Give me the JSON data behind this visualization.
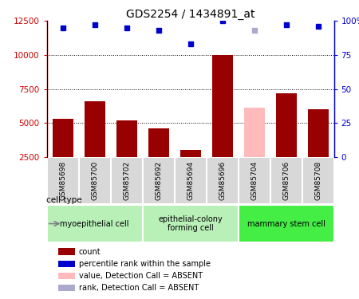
{
  "title": "GDS2254 / 1434891_at",
  "samples": [
    "GSM85698",
    "GSM85700",
    "GSM85702",
    "GSM85692",
    "GSM85694",
    "GSM85696",
    "GSM85704",
    "GSM85706",
    "GSM85708"
  ],
  "counts": [
    5300,
    6600,
    5200,
    4600,
    3000,
    10000,
    6100,
    7200,
    6000
  ],
  "ranks": [
    95,
    97,
    95,
    93,
    83,
    100,
    93,
    97,
    96
  ],
  "absent_flags": [
    false,
    false,
    false,
    false,
    false,
    false,
    true,
    false,
    false
  ],
  "ylim_left": [
    2500,
    12500
  ],
  "ylim_right": [
    0,
    100
  ],
  "yticks_left": [
    2500,
    5000,
    7500,
    10000,
    12500
  ],
  "yticks_right": [
    0,
    25,
    50,
    75,
    100
  ],
  "bar_color_normal": "#990000",
  "bar_color_absent": "#ffbbbb",
  "rank_color_normal": "#0000cc",
  "rank_color_absent": "#aaaacc",
  "grid_lines": [
    5000,
    7500,
    10000
  ],
  "group_labels": [
    "myoepithelial cell",
    "epithelial-colony\nforming cell",
    "mammary stem cell"
  ],
  "group_starts": [
    0,
    3,
    6
  ],
  "group_ends": [
    3,
    6,
    9
  ],
  "group_colors": [
    "#b8f0b8",
    "#b8f0b8",
    "#44ee44"
  ],
  "sample_box_color": "#d8d8d8",
  "cell_type_label": "cell type",
  "legend_items": [
    {
      "label": "count",
      "color": "#990000"
    },
    {
      "label": "percentile rank within the sample",
      "color": "#0000cc"
    },
    {
      "label": "value, Detection Call = ABSENT",
      "color": "#ffbbbb"
    },
    {
      "label": "rank, Detection Call = ABSENT",
      "color": "#aaaacc"
    }
  ]
}
